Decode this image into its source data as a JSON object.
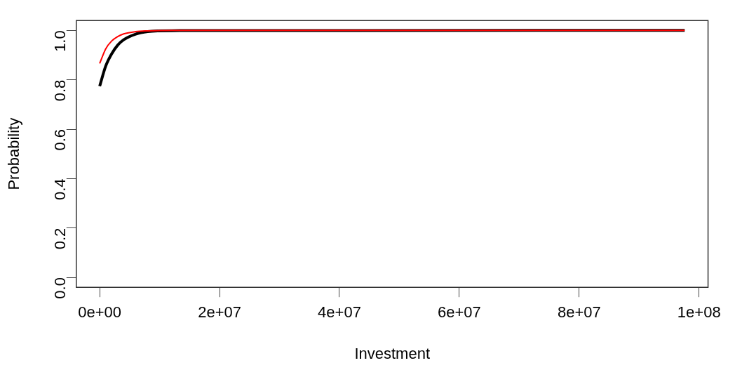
{
  "chart_data": {
    "type": "line",
    "xlabel": "Investment",
    "ylabel": "Probability",
    "xlim": [
      -3900000,
      101500000
    ],
    "xticks": [
      {
        "value": 0,
        "label": "0e+00"
      },
      {
        "value": 20000000,
        "label": "2e+07"
      },
      {
        "value": 40000000,
        "label": "4e+07"
      },
      {
        "value": 60000000,
        "label": "6e+07"
      },
      {
        "value": 80000000,
        "label": "8e+07"
      },
      {
        "value": 100000000,
        "label": "1e+08"
      }
    ],
    "ylim": [
      -0.04,
      1.04
    ],
    "yticks": [
      {
        "value": 0,
        "label": "0.0"
      },
      {
        "value": 0.2,
        "label": "0.2"
      },
      {
        "value": 0.4,
        "label": "0.4"
      },
      {
        "value": 0.6,
        "label": "0.6"
      },
      {
        "value": 0.8,
        "label": "0.8"
      },
      {
        "value": 1,
        "label": "1.0"
      }
    ],
    "grid": false,
    "legend": false,
    "marker": "none",
    "line_style": "solid",
    "x": [
      0,
      1000000,
      2000000,
      3000000,
      4000000,
      6000000,
      8000000,
      12000000,
      97600000
    ],
    "series": [
      {
        "color": "#000000",
        "values": [
          0.774,
          0.855,
          0.905,
          0.94,
          0.962,
          0.985,
          0.995,
          0.999,
          1
        ]
      },
      {
        "color": "#ff0000",
        "values": [
          0.866,
          0.925,
          0.957,
          0.975,
          0.986,
          0.995,
          0.998,
          1,
          1
        ]
      }
    ]
  }
}
